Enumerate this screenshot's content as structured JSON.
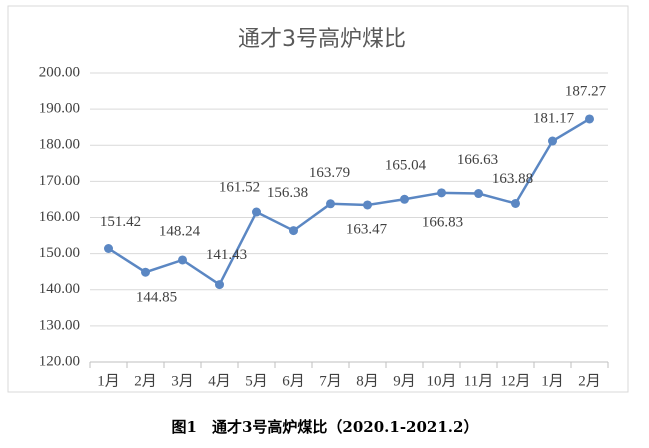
{
  "chart_data": {
    "type": "line",
    "title": "通才3号高炉煤比",
    "categories": [
      "1月",
      "2月",
      "3月",
      "4月",
      "5月",
      "6月",
      "7月",
      "8月",
      "9月",
      "10月",
      "11月",
      "12月",
      "1月",
      "2月"
    ],
    "values": [
      151.42,
      144.85,
      148.24,
      141.43,
      161.52,
      156.38,
      163.79,
      163.47,
      165.04,
      166.83,
      166.63,
      163.88,
      181.17,
      187.27
    ],
    "color": "#5b87c3",
    "ylim": [
      120,
      200
    ],
    "yticks": [
      {
        "value": 120,
        "label": "120.00"
      },
      {
        "value": 130,
        "label": "130.00"
      },
      {
        "value": 140,
        "label": "140.00"
      },
      {
        "value": 150,
        "label": "150.00"
      },
      {
        "value": 160,
        "label": "160.00"
      },
      {
        "value": 170,
        "label": "170.00"
      },
      {
        "value": 180,
        "label": "180.00"
      },
      {
        "value": 190,
        "label": "190.00"
      },
      {
        "value": 200,
        "label": "200.00"
      }
    ],
    "grid": true
  },
  "caption": "图1　通才3号高炉煤比（2020.1-2021.2）"
}
